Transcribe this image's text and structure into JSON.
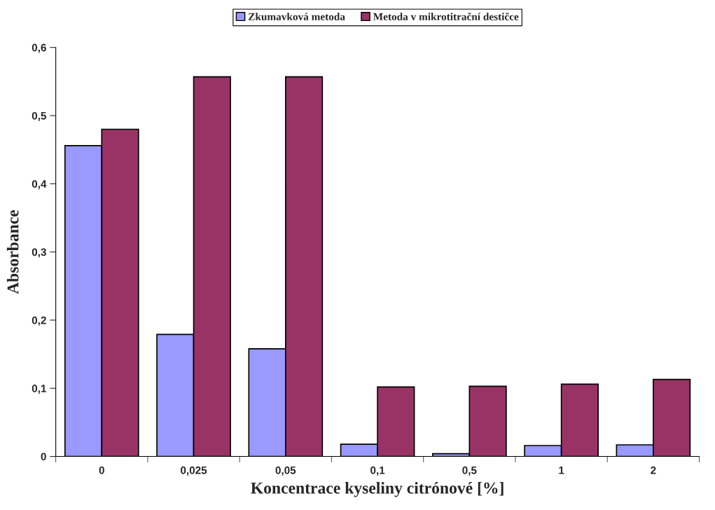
{
  "chart_data": {
    "type": "bar",
    "xlabel": "Koncentrace kyseliny citrónové [%]",
    "ylabel": "Absorbance",
    "categories": [
      "0",
      "0,025",
      "0,05",
      "0,1",
      "0,5",
      "1",
      "2"
    ],
    "series": [
      {
        "name": "Zkumavková metoda",
        "color": "#9999ff",
        "values": [
          0.456,
          0.179,
          0.158,
          0.018,
          0.004,
          0.016,
          0.017
        ]
      },
      {
        "name": "Metoda v mikrotitrační destičce",
        "color": "#993366",
        "values": [
          0.48,
          0.557,
          0.557,
          0.102,
          0.103,
          0.106,
          0.113
        ]
      }
    ],
    "ylim": [
      0,
      0.6
    ],
    "yticks": [
      {
        "value": 0,
        "label": "0"
      },
      {
        "value": 0.1,
        "label": "0,1"
      },
      {
        "value": 0.2,
        "label": "0,2"
      },
      {
        "value": 0.3,
        "label": "0,3"
      },
      {
        "value": 0.4,
        "label": "0,4"
      },
      {
        "value": 0.5,
        "label": "0,5"
      },
      {
        "value": 0.6,
        "label": "0,6"
      }
    ],
    "grid": false,
    "legend": "top"
  }
}
